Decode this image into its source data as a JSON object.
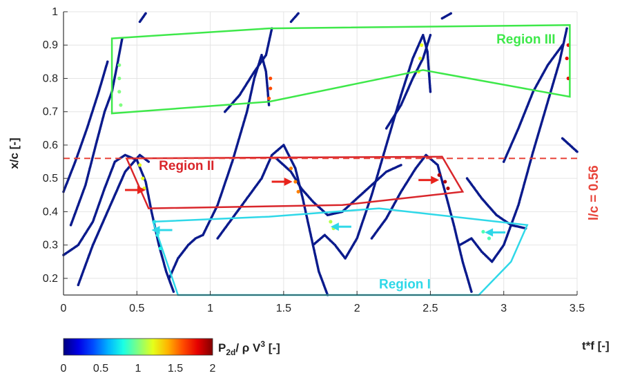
{
  "chart_data": {
    "type": "scatter",
    "xlabel": "t*f [-]",
    "ylabel": "x/c [-]",
    "xlim": [
      0,
      3.5
    ],
    "ylim": [
      0.15,
      1.0
    ],
    "x_ticks": [
      "0",
      "0.5",
      "1",
      "1.5",
      "2",
      "2.5",
      "3",
      "3.5"
    ],
    "y_ticks": [
      "0.2",
      "0.3",
      "0.4",
      "0.5",
      "0.6",
      "0.7",
      "0.8",
      "0.9",
      "1"
    ],
    "grid": true,
    "colorbar": {
      "label_main": "P",
      "label_sub": "2d",
      "label_rest": "/ ρ V",
      "label_sup": "3",
      "label_unit": " [-]",
      "min": 0,
      "max": 2,
      "ticks": [
        "0",
        "0.5",
        "1",
        "1.5",
        "2"
      ],
      "colormap": "jet"
    },
    "reference_line": {
      "y": 0.56,
      "label": "l/c = 0.56",
      "color": "#e8443a"
    },
    "regions": [
      {
        "name": "Region I",
        "color": "#2fd8e8",
        "polygon": [
          [
            0.61,
            0.37
          ],
          [
            1.4,
            0.385
          ],
          [
            2.15,
            0.41
          ],
          [
            3.16,
            0.36
          ],
          [
            3.05,
            0.25
          ],
          [
            2.83,
            0.15
          ],
          [
            0.78,
            0.15
          ]
        ]
      },
      {
        "name": "Region II",
        "color": "#d9262b",
        "polygon": [
          [
            0.43,
            0.56
          ],
          [
            2.58,
            0.565
          ],
          [
            2.72,
            0.46
          ],
          [
            1.9,
            0.42
          ],
          [
            0.58,
            0.41
          ]
        ]
      },
      {
        "name": "Region III",
        "color": "#3ee84a",
        "polygon": [
          [
            0.33,
            0.92
          ],
          [
            1.4,
            0.95
          ],
          [
            3.45,
            0.96
          ],
          [
            3.45,
            0.745
          ],
          [
            2.45,
            0.825
          ],
          [
            1.4,
            0.73
          ],
          [
            0.33,
            0.695
          ]
        ]
      }
    ],
    "arrows": [
      {
        "region": "Region II",
        "color": "#e8231c",
        "tip": [
          0.56,
          0.465
        ],
        "dir": "right"
      },
      {
        "region": "Region II",
        "color": "#e8231c",
        "tip": [
          1.56,
          0.49
        ],
        "dir": "right"
      },
      {
        "region": "Region II",
        "color": "#e8231c",
        "tip": [
          2.56,
          0.495
        ],
        "dir": "right"
      },
      {
        "region": "Region I",
        "color": "#2fd8e8",
        "tip": [
          0.6,
          0.345
        ],
        "dir": "left"
      },
      {
        "region": "Region I",
        "color": "#2fd8e8",
        "tip": [
          1.82,
          0.355
        ],
        "dir": "left"
      },
      {
        "region": "Region I",
        "color": "#2fd8e8",
        "tip": [
          2.87,
          0.338
        ],
        "dir": "left"
      }
    ],
    "trajectories": [
      {
        "name": "A1",
        "points": [
          [
            0.0,
            0.27
          ],
          [
            0.1,
            0.3
          ],
          [
            0.2,
            0.37
          ],
          [
            0.28,
            0.47
          ],
          [
            0.35,
            0.55
          ],
          [
            0.42,
            0.57
          ],
          [
            0.5,
            0.555
          ],
          [
            0.56,
            0.49
          ],
          [
            0.6,
            0.4
          ],
          [
            0.65,
            0.3
          ],
          [
            0.7,
            0.22
          ],
          [
            0.75,
            0.16
          ]
        ]
      },
      {
        "name": "A2",
        "points": [
          [
            0.72,
            0.2
          ],
          [
            0.78,
            0.26
          ],
          [
            0.85,
            0.3
          ],
          [
            0.9,
            0.32
          ],
          [
            0.95,
            0.33
          ],
          [
            1.05,
            0.42
          ],
          [
            1.15,
            0.55
          ],
          [
            1.25,
            0.7
          ],
          [
            1.3,
            0.8
          ],
          [
            1.35,
            0.87
          ],
          [
            1.38,
            0.82
          ],
          [
            1.4,
            0.72
          ]
        ]
      },
      {
        "name": "A3",
        "points": [
          [
            0.05,
            0.36
          ],
          [
            0.15,
            0.48
          ],
          [
            0.22,
            0.6
          ],
          [
            0.28,
            0.7
          ],
          [
            0.33,
            0.76
          ],
          [
            0.37,
            0.85
          ],
          [
            0.4,
            0.92
          ]
        ]
      },
      {
        "name": "A4",
        "points": [
          [
            0.1,
            0.18
          ],
          [
            0.2,
            0.3
          ],
          [
            0.32,
            0.42
          ],
          [
            0.42,
            0.52
          ],
          [
            0.52,
            0.57
          ],
          [
            0.58,
            0.55
          ]
        ]
      },
      {
        "name": "A5",
        "points": [
          [
            0.0,
            0.46
          ],
          [
            0.08,
            0.55
          ],
          [
            0.16,
            0.65
          ],
          [
            0.24,
            0.76
          ],
          [
            0.3,
            0.85
          ]
        ]
      },
      {
        "name": "B1",
        "points": [
          [
            1.05,
            0.32
          ],
          [
            1.15,
            0.38
          ],
          [
            1.25,
            0.44
          ],
          [
            1.35,
            0.5
          ],
          [
            1.42,
            0.57
          ],
          [
            1.5,
            0.6
          ],
          [
            1.58,
            0.53
          ],
          [
            1.63,
            0.44
          ],
          [
            1.68,
            0.34
          ],
          [
            1.74,
            0.22
          ],
          [
            1.8,
            0.15
          ]
        ]
      },
      {
        "name": "B2",
        "points": [
          [
            1.7,
            0.3
          ],
          [
            1.78,
            0.33
          ],
          [
            1.85,
            0.3
          ],
          [
            1.92,
            0.26
          ],
          [
            2.0,
            0.32
          ],
          [
            2.1,
            0.45
          ],
          [
            2.2,
            0.6
          ],
          [
            2.3,
            0.75
          ],
          [
            2.38,
            0.86
          ],
          [
            2.45,
            0.93
          ],
          [
            2.48,
            0.88
          ],
          [
            2.5,
            0.76
          ]
        ]
      },
      {
        "name": "B3",
        "points": [
          [
            1.1,
            0.7
          ],
          [
            1.2,
            0.75
          ],
          [
            1.3,
            0.82
          ],
          [
            1.38,
            0.87
          ],
          [
            1.42,
            0.95
          ]
        ]
      },
      {
        "name": "B4",
        "points": [
          [
            1.45,
            0.56
          ],
          [
            1.55,
            0.52
          ],
          [
            1.62,
            0.47
          ],
          [
            1.7,
            0.43
          ],
          [
            1.8,
            0.39
          ],
          [
            1.9,
            0.4
          ],
          [
            2.0,
            0.44
          ],
          [
            2.1,
            0.48
          ],
          [
            2.2,
            0.52
          ],
          [
            2.3,
            0.54
          ]
        ]
      },
      {
        "name": "C1",
        "points": [
          [
            2.1,
            0.32
          ],
          [
            2.2,
            0.38
          ],
          [
            2.3,
            0.46
          ],
          [
            2.4,
            0.53
          ],
          [
            2.47,
            0.57
          ],
          [
            2.55,
            0.54
          ],
          [
            2.6,
            0.46
          ],
          [
            2.66,
            0.36
          ],
          [
            2.72,
            0.25
          ],
          [
            2.78,
            0.16
          ]
        ]
      },
      {
        "name": "C2",
        "points": [
          [
            2.7,
            0.3
          ],
          [
            2.78,
            0.32
          ],
          [
            2.85,
            0.28
          ],
          [
            2.92,
            0.25
          ],
          [
            3.0,
            0.3
          ],
          [
            3.1,
            0.42
          ],
          [
            3.2,
            0.58
          ],
          [
            3.3,
            0.73
          ],
          [
            3.38,
            0.85
          ],
          [
            3.43,
            0.95
          ]
        ]
      },
      {
        "name": "C3",
        "points": [
          [
            2.2,
            0.65
          ],
          [
            2.3,
            0.72
          ],
          [
            2.38,
            0.8
          ],
          [
            2.45,
            0.86
          ],
          [
            2.5,
            0.93
          ]
        ]
      },
      {
        "name": "C4",
        "points": [
          [
            3.0,
            0.55
          ],
          [
            3.1,
            0.65
          ],
          [
            3.2,
            0.76
          ],
          [
            3.3,
            0.84
          ],
          [
            3.4,
            0.9
          ]
        ]
      },
      {
        "name": "C5",
        "points": [
          [
            2.75,
            0.5
          ],
          [
            2.85,
            0.44
          ],
          [
            2.95,
            0.39
          ],
          [
            3.05,
            0.36
          ],
          [
            3.15,
            0.35
          ]
        ]
      },
      {
        "name": "D1",
        "points": [
          [
            3.4,
            0.62
          ],
          [
            3.45,
            0.6
          ],
          [
            3.5,
            0.58
          ]
        ]
      },
      {
        "name": "D2",
        "points": [
          [
            0.52,
            0.97
          ],
          [
            0.56,
            0.995
          ]
        ]
      },
      {
        "name": "D3",
        "points": [
          [
            1.55,
            0.97
          ],
          [
            1.6,
            0.995
          ]
        ]
      },
      {
        "name": "D4",
        "points": [
          [
            2.58,
            0.98
          ],
          [
            2.64,
            0.995
          ]
        ]
      }
    ],
    "hotspots": [
      {
        "points": [
          [
            0.38,
            0.8
          ],
          [
            0.38,
            0.76
          ],
          [
            0.39,
            0.72
          ],
          [
            0.38,
            0.84
          ]
        ],
        "value": 1.0
      },
      {
        "points": [
          [
            1.41,
            0.8
          ],
          [
            1.41,
            0.77
          ],
          [
            1.4,
            0.74
          ]
        ],
        "value": 1.6
      },
      {
        "points": [
          [
            2.43,
            0.86
          ],
          [
            2.42,
            0.82
          ],
          [
            2.44,
            0.9
          ]
        ],
        "value": 1.2
      },
      {
        "points": [
          [
            3.44,
            0.9
          ],
          [
            3.43,
            0.86
          ],
          [
            3.44,
            0.8
          ]
        ],
        "value": 1.8
      },
      {
        "points": [
          [
            0.52,
            0.54
          ],
          [
            0.54,
            0.5
          ],
          [
            0.55,
            0.47
          ]
        ],
        "value": 1.2
      },
      {
        "points": [
          [
            1.55,
            0.53
          ],
          [
            1.58,
            0.49
          ],
          [
            1.6,
            0.46
          ]
        ],
        "value": 1.5
      },
      {
        "points": [
          [
            2.56,
            0.51
          ],
          [
            2.6,
            0.49
          ],
          [
            2.62,
            0.47
          ]
        ],
        "value": 1.9
      },
      {
        "points": [
          [
            0.62,
            0.37
          ],
          [
            0.64,
            0.33
          ],
          [
            0.66,
            0.29
          ]
        ],
        "value": 0.8
      },
      {
        "points": [
          [
            1.82,
            0.37
          ],
          [
            1.84,
            0.35
          ]
        ],
        "value": 1.1
      },
      {
        "points": [
          [
            2.86,
            0.34
          ],
          [
            2.9,
            0.32
          ]
        ],
        "value": 0.9
      }
    ]
  }
}
